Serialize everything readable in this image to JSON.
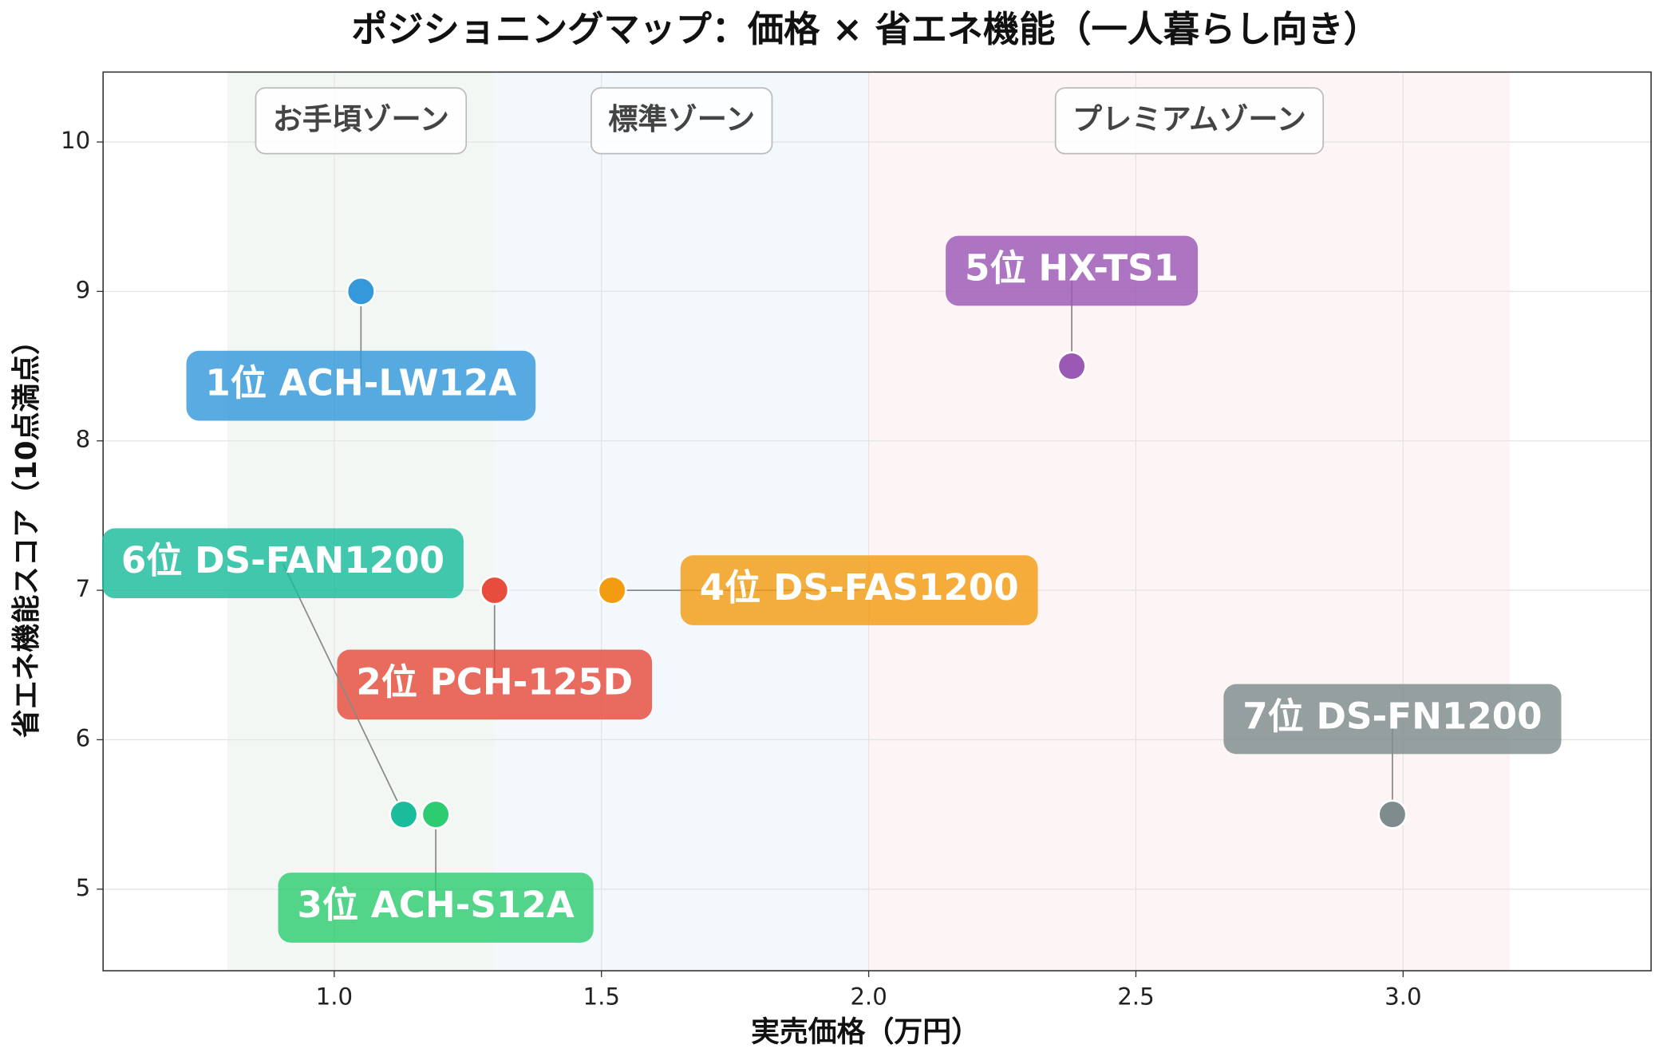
{
  "chart_data": {
    "type": "scatter",
    "title": "ポジショニングマップ：価格 × 省エネ機能（一人暮らし向き）",
    "x_label": "実売価格（万円）",
    "y_label": "省エネ機能スコア（10点満点）",
    "xlim": [
      0.5675,
      3.464
    ],
    "ylim": [
      4.454,
      10.468
    ],
    "xticks": [
      {
        "value": 1,
        "label": "1.0"
      },
      {
        "value": 1.5,
        "label": "1.5"
      },
      {
        "value": 2,
        "label": "2.0"
      },
      {
        "value": 2.5,
        "label": "2.5"
      },
      {
        "value": 3,
        "label": "3.0"
      }
    ],
    "yticks": [
      5,
      6,
      7,
      8,
      9,
      10
    ],
    "grid": true,
    "zones": [
      {
        "label": "お手頃ゾーン",
        "range": [
          0.8,
          1.3
        ],
        "color": "#f3f7f3"
      },
      {
        "label": "標準ゾーン",
        "range": [
          1.3,
          2.0
        ],
        "color": "#f2f8fc"
      },
      {
        "label": "プレミアムゾーン",
        "range": [
          2.0,
          3.2
        ],
        "color": "#fdf5f5"
      }
    ],
    "points": [
      {
        "label": "1位 ACH-LW12A",
        "x": 1.05,
        "y": 9,
        "color": "#3498db"
      },
      {
        "label": "2位 PCH-125D",
        "x": 1.3,
        "y": 7,
        "color": "#e74c3c"
      },
      {
        "label": "3位 ACH-S12A",
        "x": 1.19,
        "y": 5.5,
        "color": "#2ecc71"
      },
      {
        "label": "4位 DS-FAS1200",
        "x": 1.52,
        "y": 7,
        "color": "#f39c12"
      },
      {
        "label": "5位 HX-TS1",
        "x": 2.38,
        "y": 8.5,
        "color": "#9b59b6"
      },
      {
        "label": "6位 DS-FAN1200",
        "x": 1.13,
        "y": 5.5,
        "color": "#1abc9c"
      },
      {
        "label": "7位 DS-FN1200",
        "x": 2.98,
        "y": 5.5,
        "color": "#7f8c8d"
      }
    ]
  }
}
